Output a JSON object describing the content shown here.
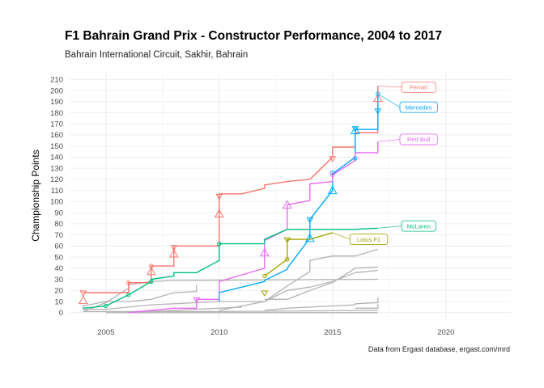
{
  "title": "F1 Bahrain Grand Prix - Constructor Performance, 2004 to 2017",
  "subtitle": "Bahrain International Circuit, Sakhir, Bahrain",
  "caption": "Data from Ergast database, ergast.com/mrd",
  "chart_data": {
    "type": "line",
    "xlabel": "",
    "ylabel": "Championship Points",
    "xlim": [
      2003.4,
      2022.9
    ],
    "ylim": [
      -6,
      216
    ],
    "x_ticks": [
      2005,
      2010,
      2015,
      2020
    ],
    "y_ticks": [
      0,
      10,
      20,
      30,
      40,
      50,
      60,
      70,
      80,
      90,
      100,
      110,
      120,
      130,
      140,
      150,
      160,
      170,
      180,
      190,
      200,
      210
    ],
    "grid": true,
    "legend": "none",
    "series": [
      {
        "name": "Ferrari",
        "color": "#F8766D",
        "label_pos": [
          2018.8,
          203
        ],
        "points": [
          [
            2004,
            18
          ],
          [
            2005,
            18
          ],
          [
            2006,
            18
          ],
          [
            2006,
            27
          ],
          [
            2007,
            27
          ],
          [
            2007,
            42
          ],
          [
            2008,
            42
          ],
          [
            2008,
            60
          ],
          [
            2009,
            60
          ],
          [
            2010,
            60
          ],
          [
            2010,
            107
          ],
          [
            2011,
            107
          ],
          [
            2012,
            112
          ],
          [
            2012,
            115
          ],
          [
            2013,
            118
          ],
          [
            2014,
            120
          ],
          [
            2015,
            140
          ],
          [
            2015,
            149
          ],
          [
            2016,
            149
          ],
          [
            2016,
            162
          ],
          [
            2017,
            162
          ],
          [
            2017,
            204
          ]
        ],
        "markers": [
          {
            "x": 2004,
            "y": 18,
            "s": "down"
          },
          {
            "x": 2004,
            "y": 11,
            "s": "up"
          },
          {
            "x": 2006,
            "y": 27,
            "s": "circle"
          },
          {
            "x": 2007,
            "y": 42,
            "s": "circle"
          },
          {
            "x": 2007,
            "y": 37,
            "s": "up"
          },
          {
            "x": 2008,
            "y": 59,
            "s": "down"
          },
          {
            "x": 2008,
            "y": 53,
            "s": "up"
          },
          {
            "x": 2010,
            "y": 105,
            "s": "down"
          },
          {
            "x": 2010,
            "y": 89,
            "s": "up"
          },
          {
            "x": 2015,
            "y": 139,
            "s": "down"
          },
          {
            "x": 2017,
            "y": 193,
            "s": "up"
          }
        ]
      },
      {
        "name": "Mercedes",
        "color": "#00A9FF",
        "label_pos": [
          2018.8,
          185
        ],
        "points": [
          [
            2010,
            10
          ],
          [
            2010,
            18
          ],
          [
            2011,
            23
          ],
          [
            2012,
            28
          ],
          [
            2012,
            29
          ],
          [
            2013,
            39
          ],
          [
            2013,
            40
          ],
          [
            2014,
            67
          ],
          [
            2014,
            84
          ],
          [
            2015,
            110
          ],
          [
            2015,
            125
          ],
          [
            2016,
            140
          ],
          [
            2016,
            165
          ],
          [
            2017,
            165
          ],
          [
            2017,
            197
          ]
        ],
        "markers": [
          {
            "x": 2010,
            "y": 18,
            "s": "vline"
          },
          {
            "x": 2014,
            "y": 84,
            "s": "down"
          },
          {
            "x": 2014,
            "y": 67,
            "s": "up"
          },
          {
            "x": 2015,
            "y": 110,
            "s": "up"
          },
          {
            "x": 2015,
            "y": 126,
            "s": "circle"
          },
          {
            "x": 2016,
            "y": 139,
            "s": "circle"
          },
          {
            "x": 2016,
            "y": 166,
            "s": "down"
          },
          {
            "x": 2016,
            "y": 164,
            "s": "up"
          },
          {
            "x": 2017,
            "y": 197,
            "s": "circle"
          },
          {
            "x": 2017,
            "y": 182,
            "s": "down"
          }
        ]
      },
      {
        "name": "Red Bull",
        "color": "#E76BF3",
        "label_pos": [
          2018.8,
          156
        ],
        "points": [
          [
            2006,
            0
          ],
          [
            2007,
            2
          ],
          [
            2008,
            4
          ],
          [
            2009,
            4
          ],
          [
            2009,
            12
          ],
          [
            2010,
            12
          ],
          [
            2010,
            28
          ],
          [
            2011,
            34
          ],
          [
            2012,
            40
          ],
          [
            2012,
            54
          ],
          [
            2012,
            65
          ],
          [
            2013,
            75
          ],
          [
            2013,
            97
          ],
          [
            2014,
            101
          ],
          [
            2014,
            116
          ],
          [
            2015,
            118
          ],
          [
            2015,
            124
          ],
          [
            2016,
            137
          ],
          [
            2016,
            144
          ],
          [
            2017,
            144
          ],
          [
            2017,
            154
          ]
        ],
        "markers": [
          {
            "x": 2009,
            "y": 12,
            "s": "down"
          },
          {
            "x": 2012,
            "y": 54,
            "s": "up"
          },
          {
            "x": 2013,
            "y": 97,
            "s": "up"
          },
          {
            "x": 2015,
            "y": 124,
            "s": "circle"
          }
        ]
      },
      {
        "name": "McLaren",
        "color": "#00BF7D",
        "label_pos": [
          2018.8,
          78
        ],
        "points": [
          [
            2004,
            4
          ],
          [
            2005,
            6
          ],
          [
            2006,
            16
          ],
          [
            2007,
            28
          ],
          [
            2007,
            30
          ],
          [
            2008,
            33
          ],
          [
            2008,
            36
          ],
          [
            2009,
            36
          ],
          [
            2010,
            47
          ],
          [
            2010,
            62
          ],
          [
            2011,
            62
          ],
          [
            2012,
            62
          ],
          [
            2012,
            66
          ],
          [
            2013,
            75
          ],
          [
            2014,
            75
          ],
          [
            2015,
            75
          ],
          [
            2016,
            75
          ],
          [
            2017,
            76
          ]
        ],
        "markers": [
          {
            "x": 2005,
            "y": 6,
            "s": "circle"
          },
          {
            "x": 2006,
            "y": 16,
            "s": "circle"
          },
          {
            "x": 2007,
            "y": 28,
            "s": "circle"
          },
          {
            "x": 2010,
            "y": 62,
            "s": "circle"
          }
        ]
      },
      {
        "name": "Lotus F1",
        "color": "#A3A500",
        "label_pos": [
          2016.6,
          66
        ],
        "points": [
          [
            2012,
            33
          ],
          [
            2013,
            48
          ],
          [
            2013,
            66
          ],
          [
            2014,
            66
          ],
          [
            2015,
            72
          ]
        ],
        "markers": [
          {
            "x": 2012,
            "y": 33,
            "s": "circle"
          },
          {
            "x": 2012,
            "y": 18,
            "s": "down"
          },
          {
            "x": 2013,
            "y": 48,
            "s": "circle"
          },
          {
            "x": 2013,
            "y": 66,
            "s": "down"
          }
        ]
      }
    ],
    "other_series": [
      {
        "points": [
          [
            2004,
            1
          ],
          [
            2005,
            9
          ],
          [
            2006,
            22
          ],
          [
            2006,
            25
          ],
          [
            2007,
            28
          ],
          [
            2008,
            29
          ],
          [
            2017,
            30
          ]
        ]
      },
      {
        "points": [
          [
            2004,
            3
          ],
          [
            2004,
            6
          ],
          [
            2005,
            10
          ],
          [
            2006,
            10
          ],
          [
            2007,
            12
          ],
          [
            2008,
            18
          ],
          [
            2009,
            19
          ],
          [
            2009,
            25
          ]
        ]
      },
      {
        "points": [
          [
            2004,
            3
          ],
          [
            2005,
            3
          ],
          [
            2006,
            5
          ],
          [
            2007,
            7
          ],
          [
            2008,
            8
          ],
          [
            2009,
            9
          ],
          [
            2010,
            10
          ],
          [
            2012,
            10
          ],
          [
            2013,
            20
          ],
          [
            2014,
            23
          ],
          [
            2015,
            28
          ],
          [
            2016,
            36
          ],
          [
            2017,
            38
          ]
        ]
      },
      {
        "points": [
          [
            2010,
            2
          ],
          [
            2012,
            10
          ],
          [
            2013,
            24
          ],
          [
            2014,
            37
          ],
          [
            2014,
            47
          ],
          [
            2015,
            51
          ],
          [
            2016,
            51
          ],
          [
            2017,
            57
          ]
        ]
      },
      {
        "points": [
          [
            2012,
            12
          ],
          [
            2013,
            12
          ],
          [
            2014,
            20
          ],
          [
            2015,
            27
          ],
          [
            2016,
            40
          ],
          [
            2017,
            41
          ]
        ]
      },
      {
        "points": [
          [
            2012,
            2
          ],
          [
            2013,
            4
          ],
          [
            2014,
            5
          ],
          [
            2015,
            6
          ],
          [
            2016,
            7
          ],
          [
            2016,
            8
          ],
          [
            2017,
            9
          ],
          [
            2017,
            14
          ]
        ]
      },
      {
        "points": [
          [
            2016,
            4
          ],
          [
            2017,
            4
          ],
          [
            2017,
            8
          ]
        ]
      },
      {
        "points": [
          [
            2006,
            0
          ],
          [
            2007,
            1
          ],
          [
            2008,
            2
          ],
          [
            2009,
            3
          ],
          [
            2010,
            4
          ],
          [
            2011,
            5
          ]
        ]
      },
      {
        "points": [
          [
            2004,
            1
          ],
          [
            2010,
            1
          ],
          [
            2017,
            2
          ]
        ]
      },
      {
        "points": [
          [
            2005,
            0
          ],
          [
            2017,
            0
          ]
        ]
      }
    ]
  }
}
